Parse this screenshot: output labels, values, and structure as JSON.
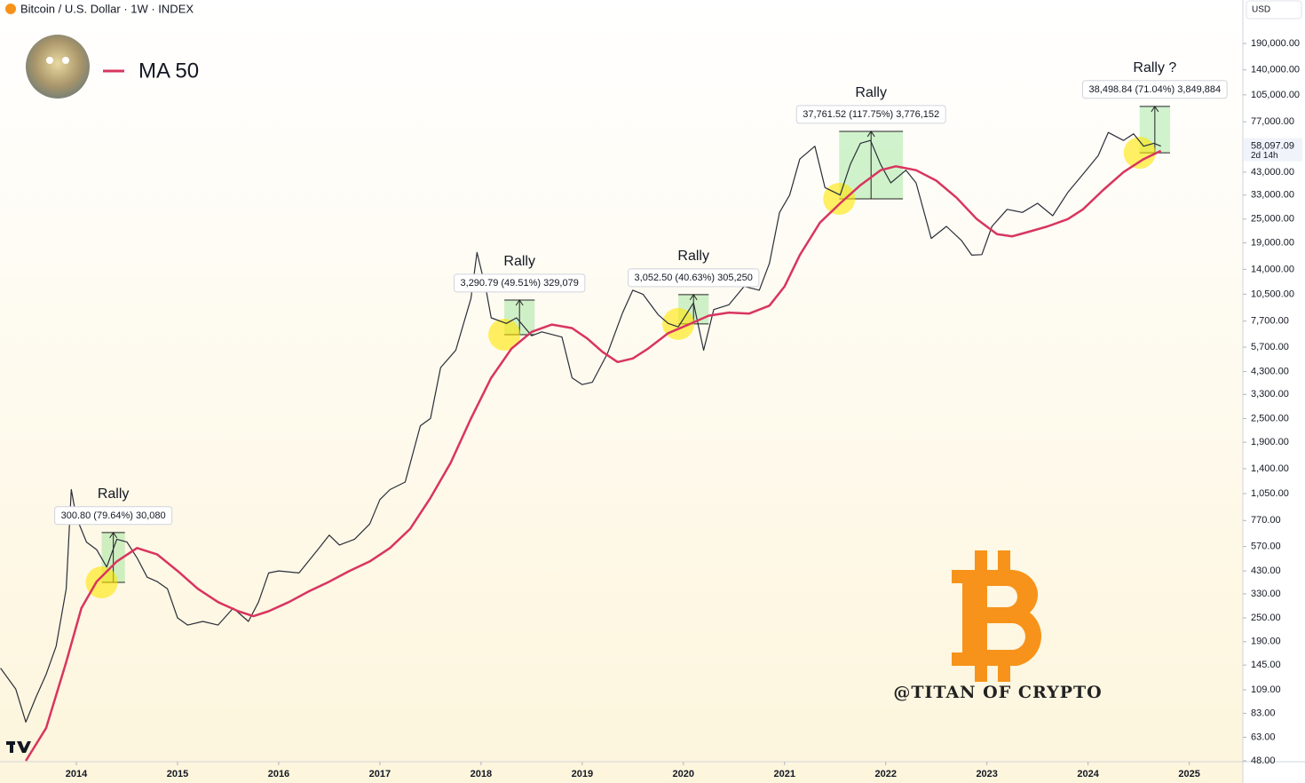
{
  "header": "Bitcoin / U.S. Dollar · 1W · INDEX",
  "currency": "USD",
  "watermark": "@TITAN OF CRYPTO",
  "chart_data": {
    "type": "line",
    "log_scale": true,
    "grid": false,
    "legend": "upper left",
    "xlim": [
      2013.245,
      2025.53
    ],
    "ylim": [
      47.5,
      314000
    ],
    "xticks": [
      2014,
      2015,
      2016,
      2017,
      2018,
      2019,
      2020,
      2021,
      2022,
      2023,
      2024,
      2025
    ],
    "yticks": [
      {
        "value": 190000,
        "label": "190,000.00"
      },
      {
        "value": 140000,
        "label": "140,000.00"
      },
      {
        "value": 105000,
        "label": "105,000.00"
      },
      {
        "value": 77000,
        "label": "77,000.00"
      },
      {
        "value": 43000,
        "label": "43,000.00"
      },
      {
        "value": 33000,
        "label": "33,000.00"
      },
      {
        "value": 25000,
        "label": "25,000.00"
      },
      {
        "value": 19000,
        "label": "19,000.00"
      },
      {
        "value": 14000,
        "label": "14,000.00"
      },
      {
        "value": 10500,
        "label": "10,500.00"
      },
      {
        "value": 7700,
        "label": "7,700.00"
      },
      {
        "value": 5700,
        "label": "5,700.00"
      },
      {
        "value": 4300,
        "label": "4,300.00"
      },
      {
        "value": 3300,
        "label": "3,300.00"
      },
      {
        "value": 2500,
        "label": "2,500.00"
      },
      {
        "value": 1900,
        "label": "1,900.00"
      },
      {
        "value": 1400,
        "label": "1,400.00"
      },
      {
        "value": 1050,
        "label": "1,050.00"
      },
      {
        "value": 770,
        "label": "770.00"
      },
      {
        "value": 570,
        "label": "570.00"
      },
      {
        "value": 430,
        "label": "430.00"
      },
      {
        "value": 330,
        "label": "330.00"
      },
      {
        "value": 250,
        "label": "250.00"
      },
      {
        "value": 190,
        "label": "190.00"
      },
      {
        "value": 145,
        "label": "145.00"
      },
      {
        "value": 109,
        "label": "109.00"
      },
      {
        "value": 83,
        "label": "83.00"
      },
      {
        "value": 63,
        "label": "63.00"
      },
      {
        "value": 48,
        "label": "48.00"
      }
    ],
    "series": [
      {
        "color": "#2a2e39",
        "x": [
          2013.25,
          2013.4,
          2013.5,
          2013.6,
          2013.7,
          2013.8,
          2013.9,
          2013.95,
          2014.0,
          2014.1,
          2014.2,
          2014.3,
          2014.4,
          2014.5,
          2014.6,
          2014.7,
          2014.8,
          2014.9,
          2015.0,
          2015.1,
          2015.25,
          2015.4,
          2015.55,
          2015.7,
          2015.8,
          2015.9,
          2016.0,
          2016.2,
          2016.4,
          2016.5,
          2016.6,
          2016.75,
          2016.9,
          2017.0,
          2017.1,
          2017.25,
          2017.4,
          2017.5,
          2017.6,
          2017.75,
          2017.9,
          2017.96,
          2018.05,
          2018.1,
          2018.25,
          2018.35,
          2018.5,
          2018.6,
          2018.8,
          2018.9,
          2019.0,
          2019.1,
          2019.25,
          2019.4,
          2019.5,
          2019.6,
          2019.75,
          2019.85,
          2019.95,
          2020.1,
          2020.2,
          2020.3,
          2020.45,
          2020.6,
          2020.75,
          2020.85,
          2020.95,
          2021.05,
          2021.15,
          2021.3,
          2021.4,
          2021.55,
          2021.65,
          2021.75,
          2021.85,
          2021.95,
          2022.05,
          2022.2,
          2022.3,
          2022.45,
          2022.6,
          2022.75,
          2022.85,
          2022.95,
          2023.05,
          2023.2,
          2023.35,
          2023.5,
          2023.65,
          2023.8,
          2023.95,
          2024.1,
          2024.2,
          2024.35,
          2024.45,
          2024.55,
          2024.65,
          2024.72
        ],
        "values": [
          140,
          110,
          75,
          100,
          130,
          180,
          350,
          1100,
          800,
          600,
          550,
          450,
          620,
          600,
          500,
          400,
          380,
          350,
          250,
          230,
          240,
          230,
          280,
          240,
          300,
          420,
          430,
          420,
          560,
          650,
          580,
          620,
          740,
          980,
          1100,
          1200,
          2300,
          2500,
          4500,
          5500,
          10000,
          17000,
          11000,
          8000,
          7500,
          8000,
          6500,
          6800,
          6400,
          4000,
          3700,
          3800,
          5300,
          8500,
          11000,
          10500,
          8300,
          7500,
          7200,
          9500,
          5500,
          8800,
          9300,
          11500,
          11000,
          15000,
          27000,
          33000,
          50000,
          58000,
          36000,
          33000,
          47000,
          60000,
          62000,
          47000,
          38000,
          44000,
          38000,
          20000,
          23000,
          19500,
          16500,
          16600,
          23000,
          28000,
          27000,
          30000,
          26000,
          34000,
          42000,
          52000,
          68000,
          62000,
          67000,
          58000,
          60000,
          58097
        ]
      },
      {
        "name": "MA 50",
        "color": "#d8355f",
        "x": [
          2013.5,
          2013.7,
          2013.9,
          2014.05,
          2014.2,
          2014.4,
          2014.6,
          2014.8,
          2015.0,
          2015.2,
          2015.4,
          2015.6,
          2015.75,
          2015.9,
          2016.1,
          2016.3,
          2016.5,
          2016.7,
          2016.9,
          2017.1,
          2017.3,
          2017.5,
          2017.7,
          2017.9,
          2018.1,
          2018.3,
          2018.5,
          2018.7,
          2018.9,
          2019.05,
          2019.2,
          2019.35,
          2019.5,
          2019.65,
          2019.85,
          2020.05,
          2020.25,
          2020.45,
          2020.65,
          2020.85,
          2021.0,
          2021.15,
          2021.35,
          2021.55,
          2021.75,
          2021.95,
          2022.1,
          2022.3,
          2022.5,
          2022.7,
          2022.9,
          2023.1,
          2023.25,
          2023.4,
          2023.6,
          2023.8,
          2023.95,
          2024.15,
          2024.35,
          2024.55,
          2024.72
        ],
        "values": [
          48,
          70,
          150,
          280,
          380,
          480,
          560,
          520,
          430,
          350,
          300,
          270,
          255,
          270,
          300,
          340,
          380,
          430,
          480,
          560,
          700,
          1000,
          1500,
          2500,
          4000,
          5600,
          6800,
          7400,
          7100,
          6300,
          5400,
          4800,
          5000,
          5600,
          6700,
          7400,
          8200,
          8500,
          8400,
          9200,
          11500,
          16500,
          24000,
          30000,
          37000,
          44000,
          46000,
          44000,
          39000,
          32000,
          25000,
          21000,
          20500,
          21500,
          23000,
          25000,
          28000,
          35000,
          43000,
          50000,
          55000
        ]
      }
    ],
    "measures": [
      {
        "title": "Rally",
        "label": "300.80 (79.64%) 30,080",
        "x": [
          2014.25,
          2014.48
        ],
        "y": [
          377,
          670
        ]
      },
      {
        "title": "Rally",
        "label": "3,290.79 (49.51%) 329,079",
        "x": [
          2018.23,
          2018.53
        ],
        "y": [
          6580,
          9820
        ]
      },
      {
        "title": "Rally",
        "label": "3,052.50 (40.63%) 305,250",
        "x": [
          2019.95,
          2020.25
        ],
        "y": [
          7450,
          10450
        ]
      },
      {
        "title": "Rally",
        "label": "37,761.52 (117.75%) 3,776,152",
        "x": [
          2021.54,
          2022.17
        ],
        "y": [
          31600,
          68900
        ]
      },
      {
        "title": "Rally ?",
        "label": "38,498.84 (71.04%) 3,849,884",
        "x": [
          2024.51,
          2024.81
        ],
        "y": [
          53800,
          91900
        ]
      }
    ],
    "last_price": {
      "value": 58097.09,
      "label": "58,097.09"
    },
    "countdown": "2d 14h"
  }
}
